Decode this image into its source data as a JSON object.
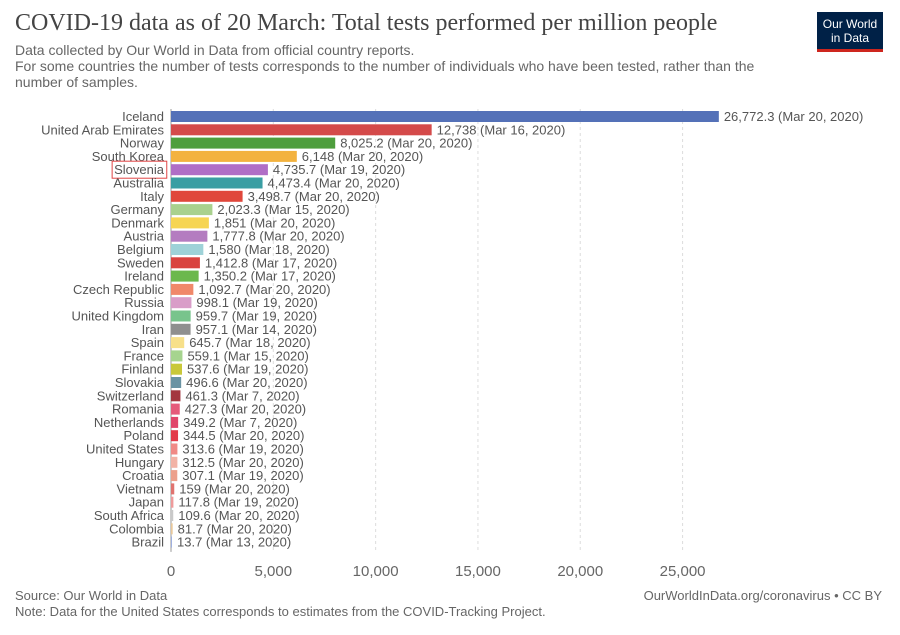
{
  "header": {
    "title": "COVID-19 data as of 20 March: Total tests performed per million people",
    "subtitle_line1": "Data collected by Our World in Data from official country reports.",
    "subtitle_line2": "For some countries the number of tests corresponds to the number of individuals who have been tested, rather than the number of samples.",
    "logo_line1": "Our World",
    "logo_line2": "in Data"
  },
  "footer": {
    "source": "Source: Our World in Data",
    "note": "Note: Data for the United States corresponds to estimates from the COVID-Tracking Project.",
    "credit": "OurWorldInData.org/coronavirus • CC BY"
  },
  "colors": {
    "highlight_outline": "#e04545",
    "grid": "#dddddd",
    "text": "#555555"
  },
  "chart_data": {
    "type": "bar",
    "orientation": "horizontal",
    "xlim": [
      0,
      27000
    ],
    "x_ticks": [
      0,
      5000,
      10000,
      15000,
      20000,
      25000
    ],
    "x_tick_labels": [
      "0",
      "5,000",
      "10,000",
      "15,000",
      "20,000",
      "25,000"
    ],
    "grid": true,
    "highlighted": "Slovenia",
    "bars": [
      {
        "country": "Iceland",
        "value": 26772.3,
        "label": "26,772.3 (Mar 20, 2020)",
        "color": "#5471b8"
      },
      {
        "country": "United Arab Emirates",
        "value": 12738,
        "label": "12,738 (Mar 16, 2020)",
        "color": "#d44a4a"
      },
      {
        "country": "Norway",
        "value": 8025.2,
        "label": "8,025.2 (Mar 20, 2020)",
        "color": "#4e9e3d"
      },
      {
        "country": "South Korea",
        "value": 6148,
        "label": "6,148 (Mar 20, 2020)",
        "color": "#f3b23e"
      },
      {
        "country": "Slovenia",
        "value": 4735.7,
        "label": "4,735.7 (Mar 19, 2020)",
        "color": "#b06ec6"
      },
      {
        "country": "Australia",
        "value": 4473.4,
        "label": "4,473.4 (Mar 20, 2020)",
        "color": "#3a9ea3"
      },
      {
        "country": "Italy",
        "value": 3498.7,
        "label": "3,498.7 (Mar 20, 2020)",
        "color": "#e0473b"
      },
      {
        "country": "Germany",
        "value": 2023.3,
        "label": "2,023.3 (Mar 15, 2020)",
        "color": "#a9d18e"
      },
      {
        "country": "Denmark",
        "value": 1851,
        "label": "1,851 (Mar 20, 2020)",
        "color": "#f6d553"
      },
      {
        "country": "Austria",
        "value": 1777.8,
        "label": "1,777.8 (Mar 20, 2020)",
        "color": "#b47cc0"
      },
      {
        "country": "Belgium",
        "value": 1580,
        "label": "1,580 (Mar 18, 2020)",
        "color": "#9ed2d8"
      },
      {
        "country": "Sweden",
        "value": 1412.8,
        "label": "1,412.8 (Mar 17, 2020)",
        "color": "#d9433f"
      },
      {
        "country": "Ireland",
        "value": 1350.2,
        "label": "1,350.2 (Mar 17, 2020)",
        "color": "#6cb84d"
      },
      {
        "country": "Czech Republic",
        "value": 1092.7,
        "label": "1,092.7 (Mar 20, 2020)",
        "color": "#f0886a"
      },
      {
        "country": "Russia",
        "value": 998.1,
        "label": "998.1 (Mar 19, 2020)",
        "color": "#d99dc8"
      },
      {
        "country": "United Kingdom",
        "value": 959.7,
        "label": "959.7 (Mar 19, 2020)",
        "color": "#78c48c"
      },
      {
        "country": "Iran",
        "value": 957.1,
        "label": "957.1 (Mar 14, 2020)",
        "color": "#8f8f8f"
      },
      {
        "country": "Spain",
        "value": 645.7,
        "label": "645.7 (Mar 18, 2020)",
        "color": "#f7e08a"
      },
      {
        "country": "France",
        "value": 559.1,
        "label": "559.1 (Mar 15, 2020)",
        "color": "#a6d48f"
      },
      {
        "country": "Finland",
        "value": 537.6,
        "label": "537.6 (Mar 19, 2020)",
        "color": "#c9c83a"
      },
      {
        "country": "Slovakia",
        "value": 496.6,
        "label": "496.6 (Mar 20, 2020)",
        "color": "#6a93a3"
      },
      {
        "country": "Switzerland",
        "value": 461.3,
        "label": "461.3 (Mar 7, 2020)",
        "color": "#a3373f"
      },
      {
        "country": "Romania",
        "value": 427.3,
        "label": "427.3 (Mar 20, 2020)",
        "color": "#e55a7a"
      },
      {
        "country": "Netherlands",
        "value": 349.2,
        "label": "349.2 (Mar 7, 2020)",
        "color": "#e0466a"
      },
      {
        "country": "Poland",
        "value": 344.5,
        "label": "344.5 (Mar 20, 2020)",
        "color": "#e23b4a"
      },
      {
        "country": "United States",
        "value": 313.6,
        "label": "313.6 (Mar 19, 2020)",
        "color": "#f08a86"
      },
      {
        "country": "Hungary",
        "value": 312.5,
        "label": "312.5 (Mar 20, 2020)",
        "color": "#f2b3a6"
      },
      {
        "country": "Croatia",
        "value": 307.1,
        "label": "307.1 (Mar 19, 2020)",
        "color": "#eca08c"
      },
      {
        "country": "Vietnam",
        "value": 159,
        "label": "159 (Mar 20, 2020)",
        "color": "#e0726e"
      },
      {
        "country": "Japan",
        "value": 117.8,
        "label": "117.8 (Mar 19, 2020)",
        "color": "#ef9b9b"
      },
      {
        "country": "South Africa",
        "value": 109.6,
        "label": "109.6 (Mar 20, 2020)",
        "color": "#c9c9c9"
      },
      {
        "country": "Colombia",
        "value": 81.7,
        "label": "81.7 (Mar 20, 2020)",
        "color": "#e8c79a"
      },
      {
        "country": "Brazil",
        "value": 13.7,
        "label": "13.7 (Mar 13, 2020)",
        "color": "#9fb0e0"
      }
    ]
  }
}
